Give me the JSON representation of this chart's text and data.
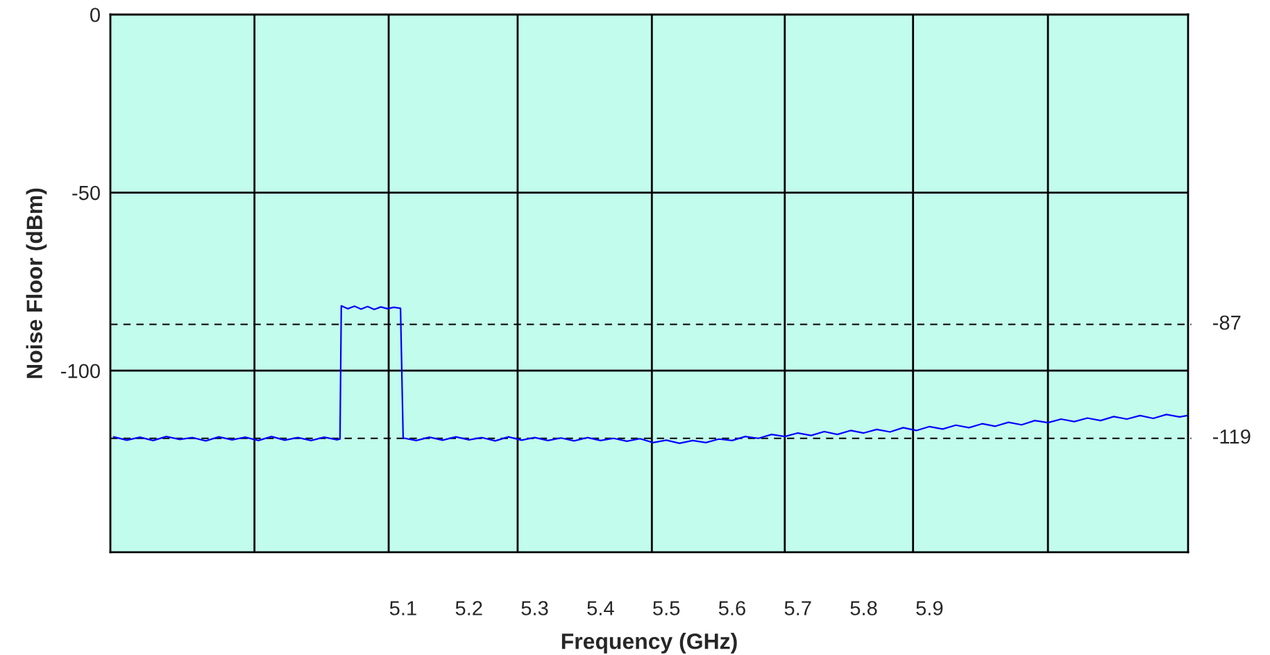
{
  "chart_data": {
    "type": "line",
    "xlabel": "Frequency (GHz)",
    "ylabel": "Noise Floor (dBm)",
    "xlim": [
      4.655,
      6.293
    ],
    "ylim": [
      -151,
      0
    ],
    "xticks": [
      {
        "value": 4.874,
        "label": null
      },
      {
        "value": 5.078,
        "label": null
      },
      {
        "value": 5.274,
        "label": null
      },
      {
        "value": 5.478,
        "label": null
      },
      {
        "value": 5.68,
        "label": null
      },
      {
        "value": 5.875,
        "label": null
      },
      {
        "value": 6.08,
        "label": null
      },
      5.1,
      5.2,
      5.3,
      5.4,
      5.5,
      5.6,
      5.7,
      5.8,
      5.9
    ],
    "yticks": [
      0,
      -50,
      -100
    ],
    "grid": true,
    "ref_lines": [
      {
        "axis": "y",
        "value": -87,
        "label": "-87",
        "color": "#000000",
        "line_style": "dashed"
      },
      {
        "axis": "y",
        "value": -119,
        "label": "-119",
        "color": "#000000",
        "line_style": "dashed"
      }
    ],
    "series": [
      {
        "color": "#0000ff",
        "x": [
          4.66,
          4.68,
          4.7,
          4.72,
          4.74,
          4.76,
          4.78,
          4.8,
          4.82,
          4.84,
          4.86,
          4.88,
          4.9,
          4.92,
          4.94,
          4.96,
          4.98,
          5.0,
          5.004,
          5.006,
          5.016,
          5.026,
          5.036,
          5.046,
          5.056,
          5.066,
          5.076,
          5.086,
          5.096,
          5.1,
          5.12,
          5.14,
          5.16,
          5.18,
          5.2,
          5.22,
          5.24,
          5.26,
          5.28,
          5.3,
          5.32,
          5.34,
          5.36,
          5.38,
          5.4,
          5.42,
          5.44,
          5.46,
          5.48,
          5.5,
          5.52,
          5.54,
          5.56,
          5.58,
          5.6,
          5.62,
          5.64,
          5.66,
          5.68,
          5.7,
          5.72,
          5.74,
          5.76,
          5.78,
          5.8,
          5.82,
          5.84,
          5.86,
          5.88,
          5.9,
          5.92,
          5.94,
          5.96,
          5.98,
          6.0,
          6.02,
          6.04,
          6.06,
          6.08,
          6.1,
          6.12,
          6.14,
          6.16,
          6.18,
          6.2,
          6.22,
          6.24,
          6.26,
          6.28,
          6.292
        ],
        "values": [
          -118.6,
          -119.5,
          -118.7,
          -119.6,
          -118.5,
          -119.3,
          -118.8,
          -119.7,
          -118.6,
          -119.4,
          -118.7,
          -119.6,
          -118.5,
          -119.5,
          -118.8,
          -119.6,
          -118.7,
          -119.4,
          -119.2,
          -81.8,
          -82.6,
          -81.9,
          -82.7,
          -82.0,
          -82.8,
          -82.1,
          -82.6,
          -82.2,
          -82.5,
          -118.9,
          -119.6,
          -118.7,
          -119.5,
          -118.6,
          -119.4,
          -118.8,
          -119.7,
          -118.6,
          -119.5,
          -118.8,
          -119.6,
          -118.9,
          -119.7,
          -118.8,
          -119.6,
          -119.0,
          -119.8,
          -119.1,
          -120.2,
          -119.5,
          -120.4,
          -119.6,
          -120.2,
          -119.2,
          -119.6,
          -118.5,
          -119.0,
          -117.9,
          -118.5,
          -117.5,
          -118.2,
          -117.1,
          -117.9,
          -116.8,
          -117.5,
          -116.5,
          -117.2,
          -116.0,
          -116.8,
          -115.7,
          -116.4,
          -115.3,
          -116.0,
          -114.9,
          -115.6,
          -114.5,
          -115.2,
          -114.0,
          -114.6,
          -113.6,
          -114.3,
          -113.3,
          -114.0,
          -112.9,
          -113.6,
          -112.6,
          -113.4,
          -112.3,
          -113.0,
          -112.6
        ]
      }
    ]
  }
}
